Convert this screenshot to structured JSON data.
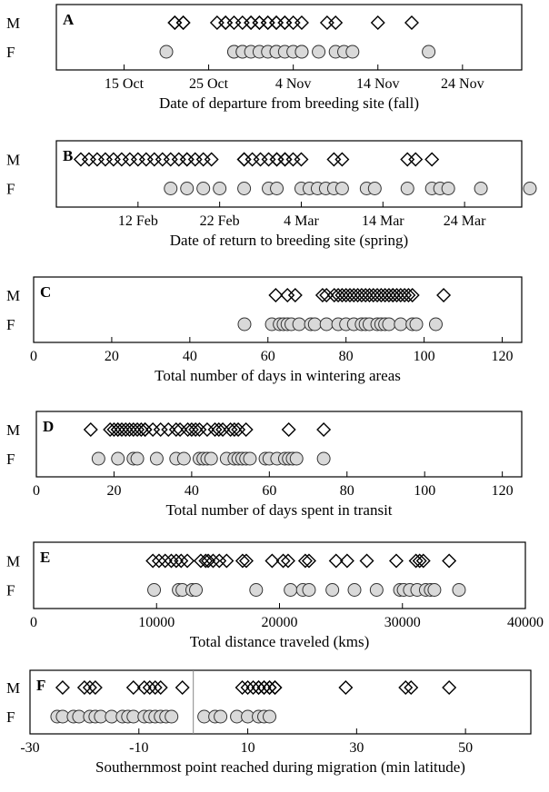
{
  "chart_data": [
    {
      "type": "scatter",
      "panel": "A",
      "xlabel": "Date of departure from breeding site (fall)",
      "x_ticks": [
        "15 Oct",
        "25 Oct",
        "4 Nov",
        "14 Nov",
        "24 Nov"
      ],
      "x_tick_values": [
        "2000-10-15",
        "2000-10-25",
        "2000-11-04",
        "2000-11-14",
        "2000-11-24"
      ],
      "xlim": [
        "2000-10-07",
        "2000-12-01"
      ],
      "grid": false,
      "series": [
        {
          "name": "M",
          "marker": "diamond",
          "values": [
            "2000-10-21",
            "2000-10-21",
            "2000-10-22",
            "2000-10-22",
            "2000-10-26",
            "2000-10-27",
            "2000-10-27",
            "2000-10-28",
            "2000-10-29",
            "2000-10-30",
            "2000-10-30",
            "2000-10-31",
            "2000-10-31",
            "2000-11-01",
            "2000-11-01",
            "2000-11-02",
            "2000-11-02",
            "2000-11-03",
            "2000-11-03",
            "2000-11-04",
            "2000-11-05",
            "2000-11-08",
            "2000-11-09",
            "2000-11-14",
            "2000-11-18"
          ]
        },
        {
          "name": "F",
          "marker": "circle",
          "values": [
            "2000-10-20",
            "2000-10-28",
            "2000-10-28",
            "2000-10-29",
            "2000-10-29",
            "2000-10-30",
            "2000-10-31",
            "2000-11-01",
            "2000-11-02",
            "2000-11-02",
            "2000-11-03",
            "2000-11-04",
            "2000-11-05",
            "2000-11-05",
            "2000-11-07",
            "2000-11-09",
            "2000-11-10",
            "2000-11-11",
            "2000-11-20"
          ]
        }
      ]
    },
    {
      "type": "scatter",
      "panel": "B",
      "xlabel": "Date of return to breeding site (spring)",
      "x_ticks": [
        "12 Feb",
        "22 Feb",
        "4 Mar",
        "14 Mar",
        "24 Mar"
      ],
      "x_tick_values": [
        "2001-02-12",
        "2001-02-22",
        "2001-03-04",
        "2001-03-14",
        "2001-03-24"
      ],
      "xlim": [
        "2001-02-02",
        "2001-03-31"
      ],
      "grid": false,
      "series": [
        {
          "name": "M",
          "marker": "diamond",
          "values": [
            "2001-02-05",
            "2001-02-06",
            "2001-02-07",
            "2001-02-08",
            "2001-02-09",
            "2001-02-10",
            "2001-02-11",
            "2001-02-12",
            "2001-02-13",
            "2001-02-14",
            "2001-02-15",
            "2001-02-16",
            "2001-02-17",
            "2001-02-18",
            "2001-02-18",
            "2001-02-19",
            "2001-02-20",
            "2001-02-21",
            "2001-02-25",
            "2001-02-25",
            "2001-02-26",
            "2001-02-27",
            "2001-02-28",
            "2001-03-01",
            "2001-03-01",
            "2001-03-02",
            "2001-03-02",
            "2001-03-03",
            "2001-03-04",
            "2001-03-08",
            "2001-03-09",
            "2001-03-17",
            "2001-03-18",
            "2001-03-20"
          ]
        },
        {
          "name": "F",
          "marker": "circle",
          "values": [
            "2001-02-16",
            "2001-02-18",
            "2001-02-20",
            "2001-02-22",
            "2001-02-25",
            "2001-02-28",
            "2001-03-01",
            "2001-03-04",
            "2001-03-05",
            "2001-03-06",
            "2001-03-07",
            "2001-03-08",
            "2001-03-09",
            "2001-03-12",
            "2001-03-13",
            "2001-03-17",
            "2001-03-20",
            "2001-03-21",
            "2001-03-22",
            "2001-03-26",
            "2001-04-01"
          ]
        }
      ]
    },
    {
      "type": "scatter",
      "panel": "C",
      "xlabel": "Total number of days in wintering areas",
      "xlim": [
        0,
        125
      ],
      "x_ticks": [
        0,
        20,
        40,
        60,
        80,
        100,
        120
      ],
      "grid": false,
      "series": [
        {
          "name": "M",
          "marker": "diamond",
          "values": [
            62,
            65,
            67,
            74,
            75,
            77,
            78,
            79,
            80,
            81,
            82,
            83,
            84,
            85,
            86,
            87,
            88,
            89,
            90,
            91,
            92,
            92,
            93,
            94,
            95,
            96,
            97,
            105
          ]
        },
        {
          "name": "F",
          "marker": "circle",
          "values": [
            54,
            61,
            63,
            64,
            65,
            66,
            68,
            71,
            72,
            75,
            78,
            80,
            82,
            84,
            85,
            86,
            88,
            89,
            90,
            91,
            94,
            97,
            98,
            103
          ]
        }
      ]
    },
    {
      "type": "scatter",
      "panel": "D",
      "xlabel": "Total number of days spent in transit",
      "xlim": [
        0,
        125
      ],
      "x_ticks": [
        0,
        20,
        40,
        60,
        80,
        100,
        120
      ],
      "grid": false,
      "series": [
        {
          "name": "M",
          "marker": "diamond",
          "values": [
            14,
            19,
            20,
            21,
            21,
            22,
            23,
            24,
            25,
            26,
            27,
            28,
            28,
            30,
            32,
            34,
            36,
            37,
            39,
            40,
            41,
            42,
            44,
            46,
            47,
            48,
            50,
            51,
            52,
            54,
            65,
            74
          ]
        },
        {
          "name": "F",
          "marker": "circle",
          "values": [
            16,
            21,
            25,
            26,
            31,
            36,
            38,
            42,
            43,
            44,
            45,
            49,
            51,
            52,
            53,
            54,
            55,
            59,
            60,
            62,
            64,
            65,
            66,
            67,
            74
          ]
        }
      ]
    },
    {
      "type": "scatter",
      "panel": "E",
      "xlabel": "Total distance traveled (kms)",
      "xlim": [
        0,
        40000
      ],
      "x_ticks": [
        0,
        10000,
        20000,
        30000,
        40000
      ],
      "grid": false,
      "series": [
        {
          "name": "M",
          "marker": "diamond",
          "values": [
            9700,
            10200,
            10700,
            11200,
            11600,
            12000,
            12500,
            13600,
            14000,
            14200,
            14600,
            15100,
            15700,
            17000,
            17300,
            19400,
            20300,
            20700,
            22100,
            22400,
            24600,
            25500,
            27100,
            29500,
            31100,
            31400,
            31700,
            33800
          ]
        },
        {
          "name": "F",
          "marker": "circle",
          "values": [
            9800,
            11800,
            12100,
            12900,
            13200,
            18100,
            20900,
            21900,
            22400,
            24300,
            26100,
            27900,
            29800,
            30100,
            30600,
            31200,
            31900,
            32300,
            32600,
            34600
          ]
        }
      ]
    },
    {
      "type": "scatter",
      "panel": "F",
      "xlabel": "Southernmost point reached during migration (min latitude)",
      "xlim": [
        -30,
        62
      ],
      "x_ticks": [
        -30,
        -10,
        10,
        30,
        50
      ],
      "reference_line": 0,
      "grid": false,
      "series": [
        {
          "name": "M",
          "marker": "diamond",
          "values": [
            -24,
            -20,
            -19,
            -18,
            -11,
            -9,
            -8,
            -7,
            -6,
            -2,
            9,
            10,
            11,
            12,
            12,
            13,
            13,
            14,
            14,
            15,
            15,
            28,
            39,
            40,
            47
          ]
        },
        {
          "name": "F",
          "marker": "circle",
          "values": [
            -25,
            -24,
            -22,
            -21,
            -19,
            -18,
            -17,
            -15,
            -13,
            -12,
            -11,
            -9,
            -8,
            -7,
            -6,
            -5,
            -4,
            2,
            4,
            5,
            8,
            10,
            12,
            13,
            14
          ]
        }
      ]
    }
  ]
}
